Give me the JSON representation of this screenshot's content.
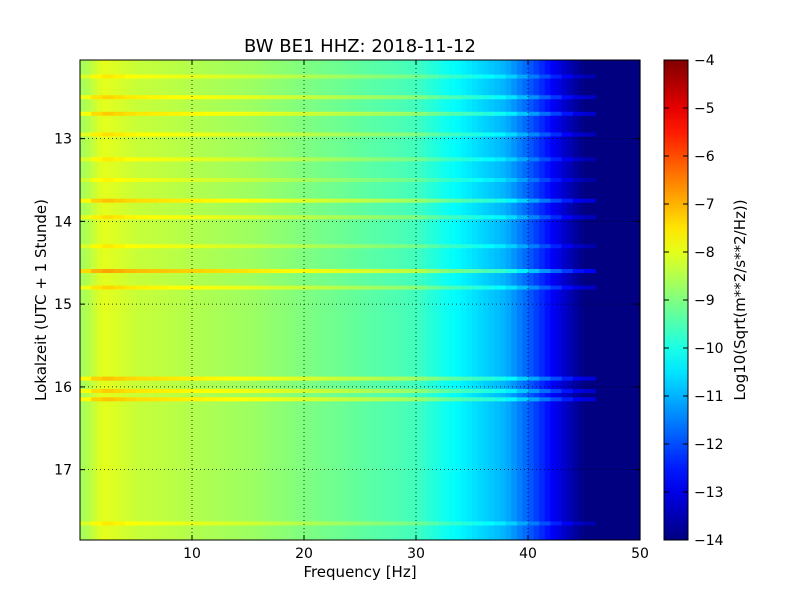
{
  "chart_data": {
    "type": "heatmap",
    "title": "BW BE1 HHZ: 2018-11-12",
    "xlabel": "Frequency [Hz]",
    "ylabel": "Lokalzeit (UTC + 1 Stunde)",
    "xlim": [
      0,
      50
    ],
    "ylim": [
      12.05,
      17.85
    ],
    "x_ticks": [
      10,
      20,
      30,
      40,
      50
    ],
    "y_ticks": [
      13,
      14,
      15,
      16,
      17
    ],
    "y_inverted": true,
    "grid": true,
    "colorbar": {
      "label": "Log10(Sqrt(m**2/s**2/Hz))",
      "range": [
        -14,
        -4
      ],
      "ticks": [
        -4,
        -5,
        -6,
        -7,
        -8,
        -9,
        -10,
        -11,
        -12,
        -13,
        -14
      ],
      "colormap": "jet"
    },
    "spectral_profile": {
      "frequency_hz": [
        0.5,
        2,
        5,
        10,
        15,
        20,
        25,
        30,
        32,
        35,
        38,
        40,
        42,
        44,
        45,
        50
      ],
      "log10_psd": [
        -8.6,
        -8.0,
        -8.3,
        -8.5,
        -8.7,
        -9.0,
        -9.3,
        -9.6,
        -10.0,
        -10.5,
        -11.0,
        -11.8,
        -12.7,
        -13.6,
        -14.0,
        -14.0
      ]
    },
    "band_times": [
      12.25,
      12.5,
      12.7,
      12.95,
      13.25,
      13.5,
      13.75,
      13.95,
      14.3,
      14.6,
      14.8,
      15.9,
      16.05,
      16.15,
      17.65
    ],
    "band_strength": [
      0.5,
      0.7,
      0.8,
      0.6,
      0.5,
      0.4,
      0.9,
      0.6,
      0.5,
      1.2,
      0.7,
      0.9,
      0.8,
      0.9,
      0.5
    ]
  }
}
